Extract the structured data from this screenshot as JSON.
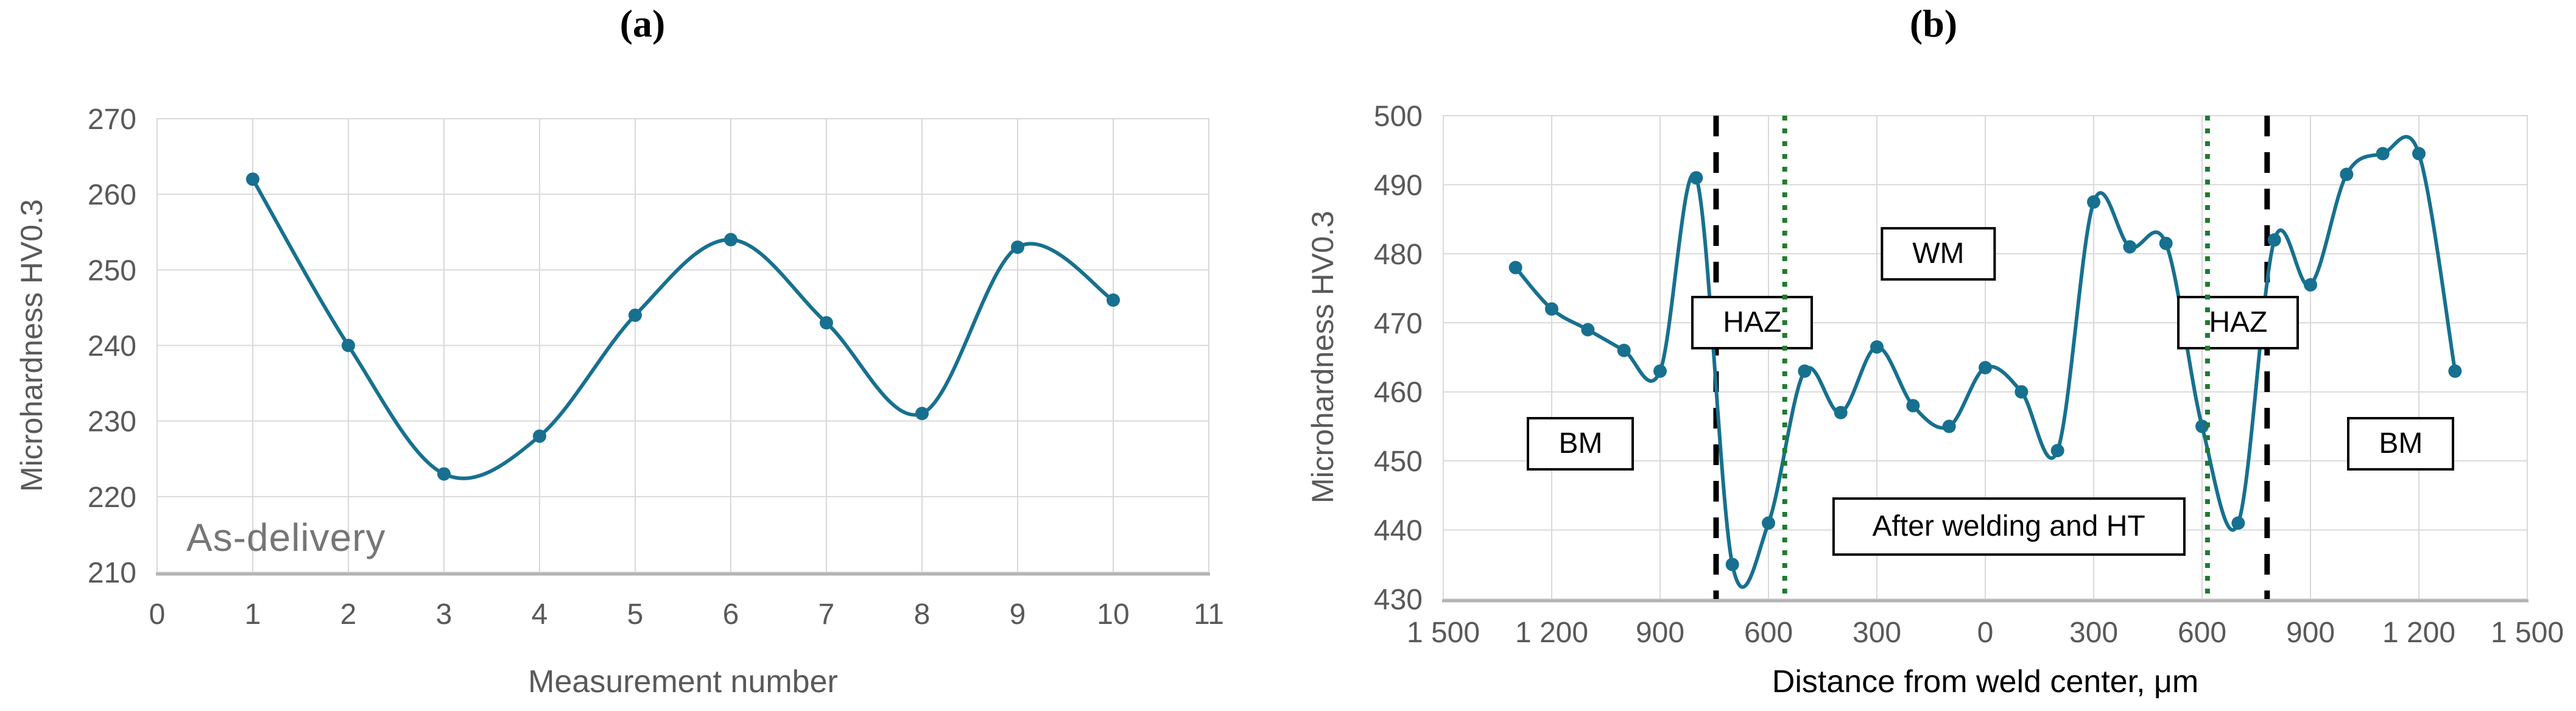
{
  "figure": {
    "background": "#ffffff",
    "panel_count": 2
  },
  "chart_data": [
    {
      "id": "a",
      "type": "line",
      "title": "(a)",
      "annotation": "As-delivery",
      "xlabel": "Measurement number",
      "ylabel": "Microhardness HV0.3",
      "x": [
        1,
        2,
        3,
        4,
        5,
        6,
        7,
        8,
        9,
        10
      ],
      "y": [
        262,
        240,
        223,
        228,
        244,
        254,
        243,
        231,
        253,
        246
      ],
      "xlim": [
        0,
        11
      ],
      "ylim": [
        210,
        270
      ],
      "x_ticks": [
        0,
        1,
        2,
        3,
        4,
        5,
        6,
        7,
        8,
        9,
        10,
        11
      ],
      "x_tick_labels": [
        "0",
        "1",
        "2",
        "3",
        "4",
        "5",
        "6",
        "7",
        "8",
        "9",
        "10",
        "11"
      ],
      "y_ticks": [
        210,
        220,
        230,
        240,
        250,
        260,
        270
      ],
      "y_tick_labels": [
        "210",
        "220",
        "230",
        "240",
        "250",
        "260",
        "270"
      ],
      "grid": true,
      "smooth": true,
      "legend": null,
      "colors": {
        "line": "#17708f",
        "grid": "#d9d9d9",
        "axis_line": "#b3b3b3",
        "axis_text": "#595959",
        "annotation_text": "#767676"
      }
    },
    {
      "id": "b",
      "type": "line",
      "title": "(b)",
      "xlabel": "Distance from weld center, μm",
      "ylabel": "Microhardness HV0.3",
      "x": [
        -1300,
        -1200,
        -1100,
        -1000,
        -900,
        -800,
        -700,
        -600,
        -500,
        -400,
        -300,
        -200,
        -100,
        0,
        100,
        200,
        300,
        400,
        500,
        600,
        700,
        800,
        900,
        1000,
        1100,
        1200,
        1300
      ],
      "y": [
        478,
        472,
        469,
        466,
        463,
        491,
        435,
        441,
        463,
        457,
        466.5,
        458,
        455,
        463.5,
        460,
        451.5,
        487.5,
        481,
        481.5,
        455,
        441,
        482,
        475.5,
        491.5,
        494.5,
        494.5,
        463
      ],
      "xlim": [
        -1500,
        1500
      ],
      "ylim": [
        430,
        500
      ],
      "x_ticks": [
        -1500,
        -1200,
        -900,
        -600,
        -300,
        0,
        300,
        600,
        900,
        1200,
        1500
      ],
      "x_tick_labels": [
        "1 500",
        "1 200",
        "900",
        "600",
        "300",
        "0",
        "300",
        "600",
        "900",
        "1 200",
        "1 500"
      ],
      "y_ticks": [
        430,
        440,
        450,
        460,
        470,
        480,
        490,
        500
      ],
      "y_tick_labels": [
        "430",
        "440",
        "450",
        "460",
        "470",
        "480",
        "490",
        "500"
      ],
      "grid": true,
      "smooth": true,
      "legend": null,
      "boundary_lines": {
        "black_dashed_x": [
          -745,
          780
        ],
        "green_dotted_x": [
          -555,
          615
        ],
        "black_color": "#000000",
        "green_color": "#1e7b2f"
      },
      "zone_labels": [
        {
          "label": "BM",
          "x": -1120,
          "y": 452.5,
          "wide": false
        },
        {
          "label": "HAZ",
          "x": -645,
          "y": 470,
          "wide": false
        },
        {
          "label": "WM",
          "x": -130,
          "y": 480,
          "wide": false
        },
        {
          "label": "HAZ",
          "x": 700,
          "y": 470,
          "wide": false
        },
        {
          "label": "BM",
          "x": 1150,
          "y": 452.5,
          "wide": false
        },
        {
          "label": "After welding and HT",
          "x": 65,
          "y": 440.5,
          "wide": true
        }
      ],
      "colors": {
        "line": "#17708f",
        "grid": "#d9d9d9",
        "axis_line": "#b3b3b3",
        "axis_text": "#595959"
      }
    }
  ]
}
